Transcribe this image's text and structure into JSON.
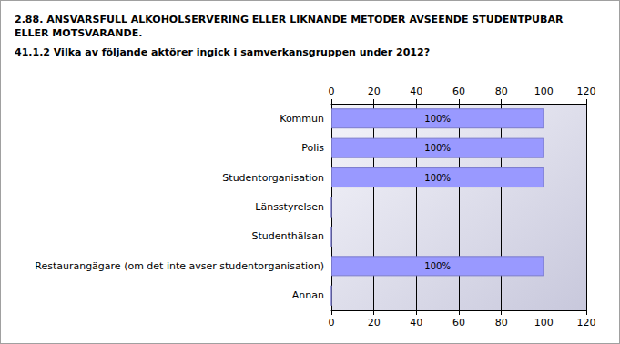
{
  "chart_data": {
    "type": "bar",
    "orientation": "horizontal",
    "title": "2.88. ANSVARSFULL ALKOHOLSERVERING ELLER LIKNANDE METODER AVSEENDE STUDENTPUBAR ELLER MOTSVARANDE.",
    "subtitle": "41.1.2 Vilka av följande aktörer ingick i samverkansgruppen under 2012?",
    "categories": [
      "Kommun",
      "Polis",
      "Studentorganisation",
      "Länsstyrelsen",
      "Studenthälsan",
      "Restaurangägare (om det inte avser studentorganisation)",
      "Annan"
    ],
    "values": [
      100,
      100,
      100,
      0,
      0,
      100,
      0
    ],
    "value_labels": [
      "100%",
      "100%",
      "100%",
      null,
      null,
      "100%",
      null
    ],
    "data_labels": true,
    "color": "#9999ff",
    "xlim": [
      0,
      120
    ],
    "xticks": [
      0,
      20,
      40,
      60,
      80,
      100,
      120
    ],
    "grid": true
  }
}
